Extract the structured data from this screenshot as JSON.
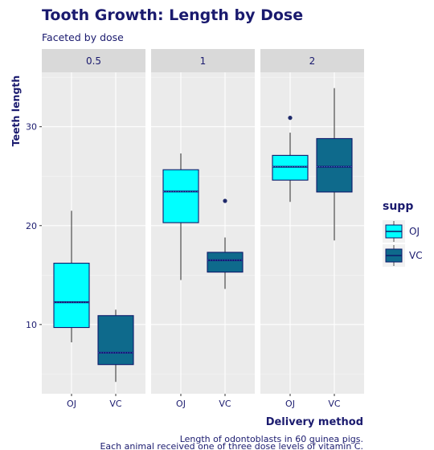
{
  "chart_data": {
    "type": "boxplot",
    "title": "Tooth Growth:  Length by Dose",
    "subtitle": "Faceted by dose",
    "xlabel": "Delivery method",
    "ylabel": "Teeth length",
    "caption_lines": [
      "Length of odontoblasts in 60 guinea pigs.",
      "Each animal received one of three dose levels of vitamin C."
    ],
    "ylim": [
      3,
      35.5
    ],
    "yticks": [
      10,
      20,
      30
    ],
    "categories": [
      "OJ",
      "VC"
    ],
    "legend": {
      "title": "supp",
      "position": "right",
      "items": [
        {
          "label": "OJ",
          "color": "#00ffff"
        },
        {
          "label": "VC",
          "color": "#0e6a8c"
        }
      ]
    },
    "colors": {
      "panel_bg": "#ebebeb",
      "strip_bg": "#d9d9d9",
      "box_outline": "#0d1a6b",
      "text": "#1a1a6e",
      "whisker": "#4d4d4d",
      "outlier": "#1f2a6b"
    },
    "facets": [
      {
        "label": "0.5",
        "boxes": [
          {
            "supp": "OJ",
            "min": 8.2,
            "q1": 9.7,
            "median": 12.25,
            "q3": 16.2,
            "max": 21.5,
            "outliers": []
          },
          {
            "supp": "VC",
            "min": 4.2,
            "q1": 5.95,
            "median": 7.15,
            "q3": 10.9,
            "max": 11.5,
            "outliers": []
          }
        ]
      },
      {
        "label": "1",
        "boxes": [
          {
            "supp": "OJ",
            "min": 14.5,
            "q1": 20.3,
            "median": 23.45,
            "q3": 25.65,
            "max": 27.3,
            "outliers": []
          },
          {
            "supp": "VC",
            "min": 13.6,
            "q1": 15.3,
            "median": 16.5,
            "q3": 17.3,
            "max": 18.8,
            "outliers": [
              22.5
            ]
          }
        ]
      },
      {
        "label": "2",
        "boxes": [
          {
            "supp": "OJ",
            "min": 22.4,
            "q1": 24.6,
            "median": 25.95,
            "q3": 27.1,
            "max": 29.4,
            "outliers": [
              30.9
            ]
          },
          {
            "supp": "VC",
            "min": 18.5,
            "q1": 23.4,
            "median": 25.95,
            "q3": 28.8,
            "max": 33.9,
            "outliers": []
          }
        ]
      }
    ]
  }
}
